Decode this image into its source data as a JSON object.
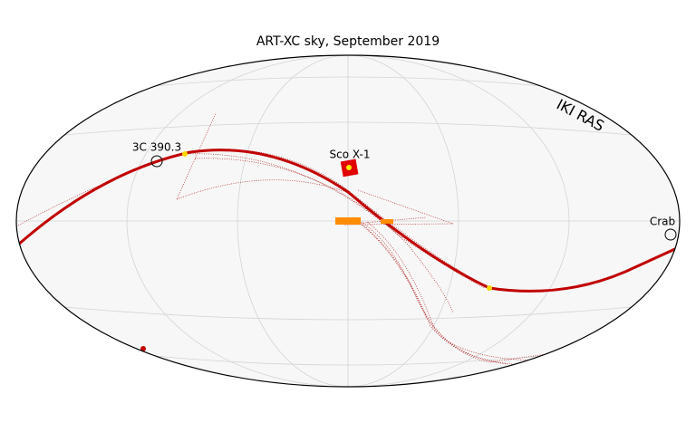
{
  "title": "ART-XC sky, September 2019",
  "watermark": "IKI RAS",
  "sources": [
    "3C 390.3",
    "Sco X-1",
    "Crab"
  ]
}
